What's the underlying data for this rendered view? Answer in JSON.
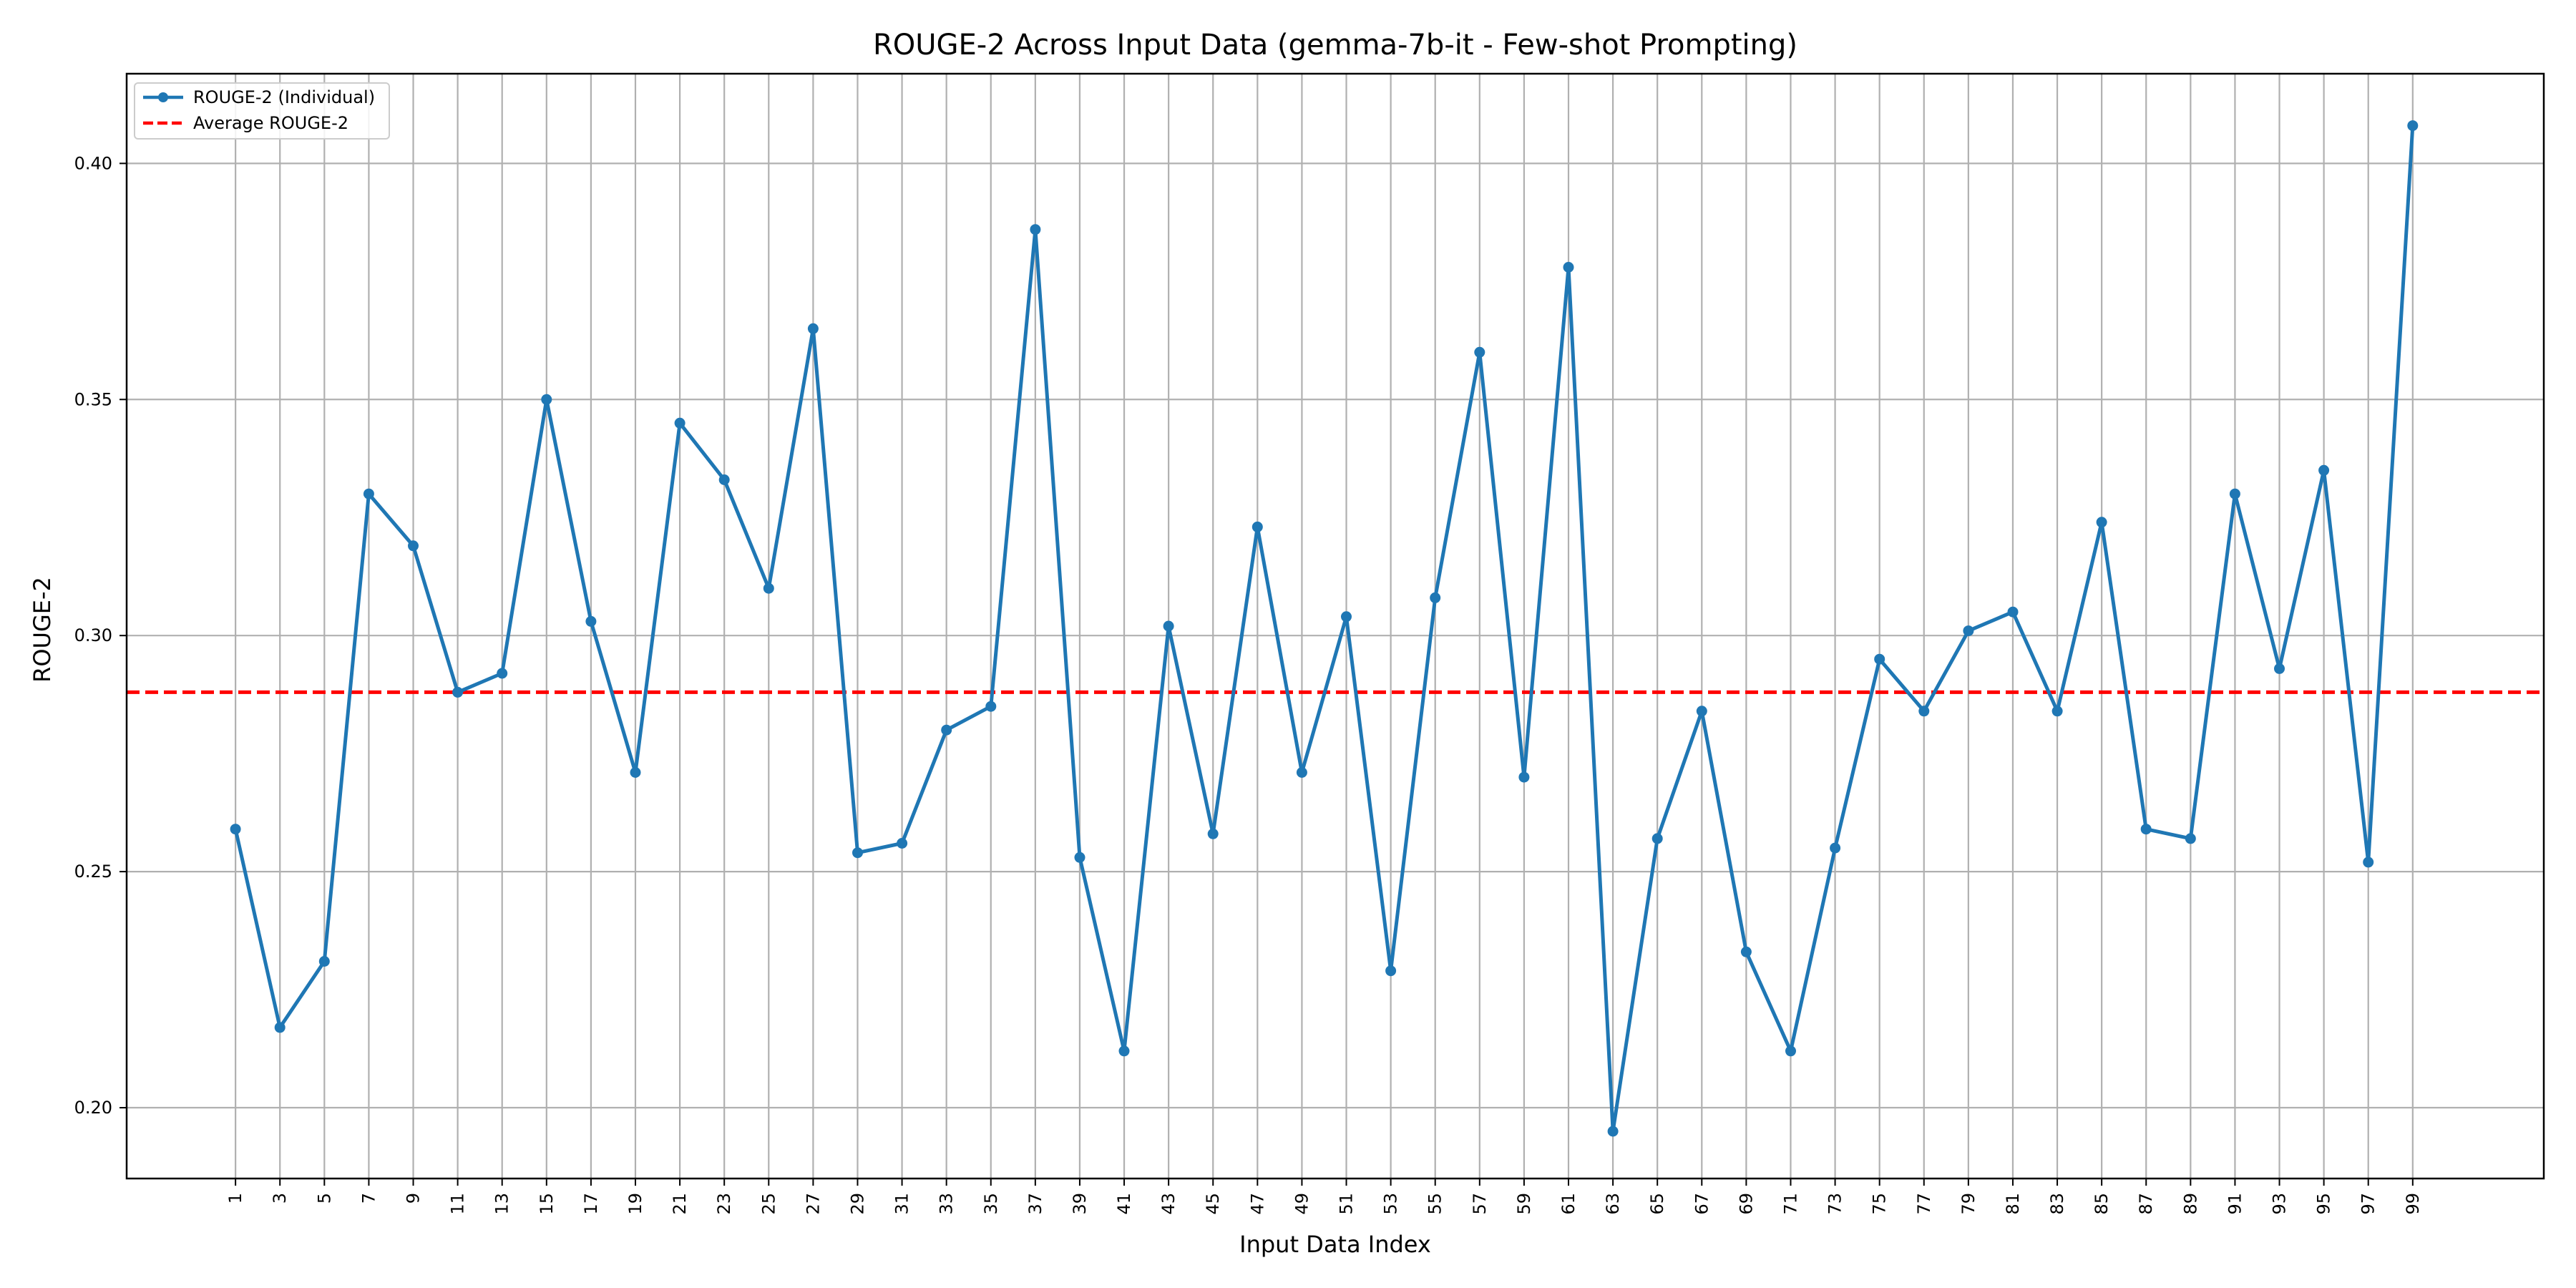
{
  "chart_data": {
    "type": "line",
    "title": "ROUGE-2 Across Input Data (gemma-7b-it - Few-shot Prompting)",
    "xlabel": "Input Data Index",
    "ylabel": "ROUGE-2",
    "xlim": [
      -3.9,
      104.9
    ],
    "ylim": [
      0.185,
      0.419
    ],
    "grid": true,
    "legend_position": "top-left",
    "x_ticks": [
      1,
      3,
      5,
      7,
      9,
      11,
      13,
      15,
      17,
      19,
      21,
      23,
      25,
      27,
      29,
      31,
      33,
      35,
      37,
      39,
      41,
      43,
      45,
      47,
      49,
      51,
      53,
      55,
      57,
      59,
      61,
      63,
      65,
      67,
      69,
      71,
      73,
      75,
      77,
      79,
      81,
      83,
      85,
      87,
      89,
      91,
      93,
      95,
      97,
      99
    ],
    "x_tick_labels": [
      "1",
      "3",
      "5",
      "7",
      "9",
      "11",
      "13",
      "15",
      "17",
      "19",
      "21",
      "23",
      "25",
      "27",
      "29",
      "31",
      "33",
      "35",
      "37",
      "39",
      "41",
      "43",
      "45",
      "47",
      "49",
      "51",
      "53",
      "55",
      "57",
      "59",
      "61",
      "63",
      "65",
      "67",
      "69",
      "71",
      "73",
      "75",
      "77",
      "79",
      "81",
      "83",
      "85",
      "87",
      "89",
      "91",
      "93",
      "95",
      "97",
      "99"
    ],
    "y_ticks": [
      0.2,
      0.25,
      0.3,
      0.35,
      0.4
    ],
    "y_tick_labels": [
      "0.20",
      "0.25",
      "0.30",
      "0.35",
      "0.40"
    ],
    "series": [
      {
        "name": "ROUGE-2 (Individual)",
        "color": "#1f77b4",
        "style": "solid-with-markers",
        "x": [
          1,
          3,
          5,
          7,
          9,
          11,
          13,
          15,
          17,
          19,
          21,
          23,
          25,
          27,
          29,
          31,
          33,
          35,
          37,
          39,
          41,
          43,
          45,
          47,
          49,
          51,
          53,
          55,
          57,
          59,
          61,
          63,
          65,
          67,
          69,
          71,
          73,
          75,
          77,
          79,
          81,
          83,
          85,
          87,
          89,
          91,
          93,
          95,
          97,
          99
        ],
        "values": [
          0.259,
          0.217,
          0.231,
          0.33,
          0.319,
          0.288,
          0.292,
          0.35,
          0.303,
          0.271,
          0.345,
          0.333,
          0.31,
          0.365,
          0.254,
          0.256,
          0.28,
          0.285,
          0.386,
          0.253,
          0.212,
          0.302,
          0.258,
          0.323,
          0.271,
          0.304,
          0.229,
          0.308,
          0.36,
          0.27,
          0.378,
          0.195,
          0.257,
          0.284,
          0.233,
          0.212,
          0.255,
          0.295,
          0.284,
          0.301,
          0.305,
          0.284,
          0.324,
          0.259,
          0.257,
          0.33,
          0.293,
          0.335,
          0.252,
          0.408
        ]
      },
      {
        "name": "Average ROUGE-2",
        "color": "#ff0000",
        "style": "dashed",
        "value": 0.288
      }
    ]
  }
}
